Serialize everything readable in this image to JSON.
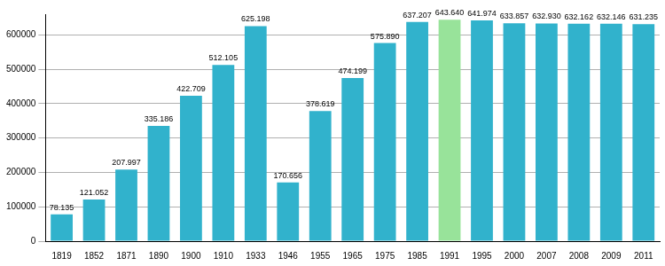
{
  "chart_data": {
    "type": "bar",
    "categories": [
      "1819",
      "1852",
      "1871",
      "1890",
      "1900",
      "1910",
      "1933",
      "1946",
      "1955",
      "1965",
      "1975",
      "1985",
      "1991",
      "1995",
      "2000",
      "2007",
      "2008",
      "2009",
      "2011"
    ],
    "values": [
      78135,
      121052,
      207997,
      335186,
      422709,
      512105,
      625198,
      170656,
      378619,
      474199,
      575890,
      637207,
      643640,
      641974,
      633857,
      632930,
      632162,
      632146,
      631235
    ],
    "value_labels": [
      "78.135",
      "121.052",
      "207.997",
      "335.186",
      "422.709",
      "512.105",
      "625.198",
      "170.656",
      "378.619",
      "474.199",
      "575.890",
      "637.207",
      "643.640",
      "641.974",
      "633.857",
      "632.930",
      "632.162",
      "632.146",
      "631.235"
    ],
    "colors": [
      "#31b2cc",
      "#31b2cc",
      "#31b2cc",
      "#31b2cc",
      "#31b2cc",
      "#31b2cc",
      "#31b2cc",
      "#31b2cc",
      "#31b2cc",
      "#31b2cc",
      "#31b2cc",
      "#31b2cc",
      "#98e39a",
      "#31b2cc",
      "#31b2cc",
      "#31b2cc",
      "#31b2cc",
      "#31b2cc",
      "#31b2cc"
    ],
    "ylim": [
      0,
      660000
    ],
    "yticks": [
      0,
      100000,
      200000,
      300000,
      400000,
      500000,
      600000
    ],
    "grid": true,
    "data_labels": true
  }
}
